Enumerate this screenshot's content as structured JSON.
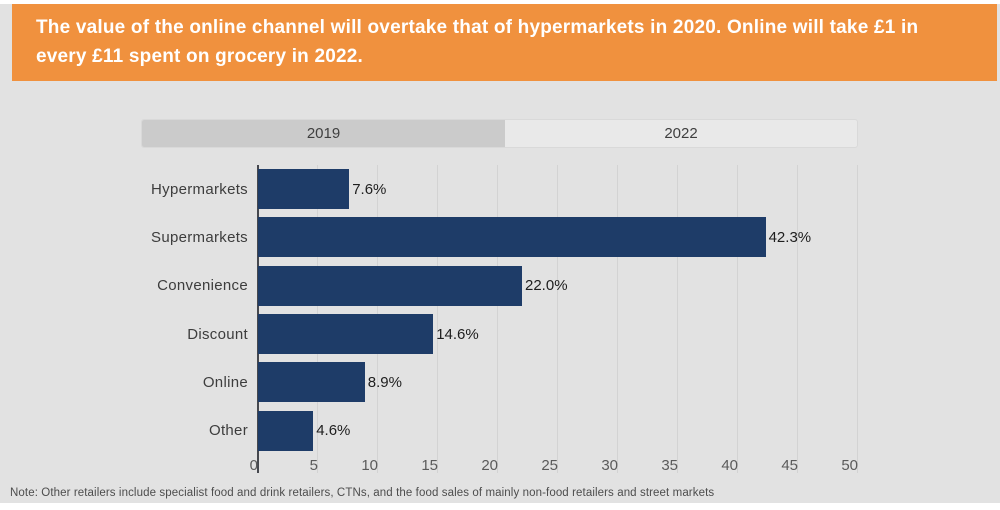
{
  "banner": {
    "text": "The value of the online channel will overtake that of hypermarkets in 2020. Online will take £1 in every £11 spent on grocery in 2022.",
    "bg_color": "#f0913e",
    "text_color": "#ffffff"
  },
  "time_slider": {
    "options": [
      "2019",
      "2022"
    ],
    "selected": "2019",
    "selected_bg": "#cbcbcb",
    "track_bg": "#e9e9e9"
  },
  "chart_data": {
    "type": "bar",
    "orientation": "horizontal",
    "categories": [
      "Hypermarkets",
      "Supermarkets",
      "Convenience",
      "Discount",
      "Online",
      "Other"
    ],
    "values": [
      7.6,
      42.3,
      22.0,
      14.6,
      8.9,
      4.6
    ],
    "value_labels": [
      "7.6%",
      "42.3%",
      "22.0%",
      "14.6%",
      "8.9%",
      "4.6%"
    ],
    "xlim": [
      0,
      50
    ],
    "xticks": [
      0,
      5,
      10,
      15,
      20,
      25,
      30,
      35,
      40,
      45,
      50
    ],
    "bar_color": "#1e3c68",
    "grid": true,
    "gridline_color": "#d3d3d3",
    "axis_line_color": "#46484e"
  },
  "note": "Note: Other retailers include specialist food and drink retailers, CTNs, and the food sales of mainly non-food retailers and street markets",
  "page": {
    "background": "#e2e2e2"
  }
}
